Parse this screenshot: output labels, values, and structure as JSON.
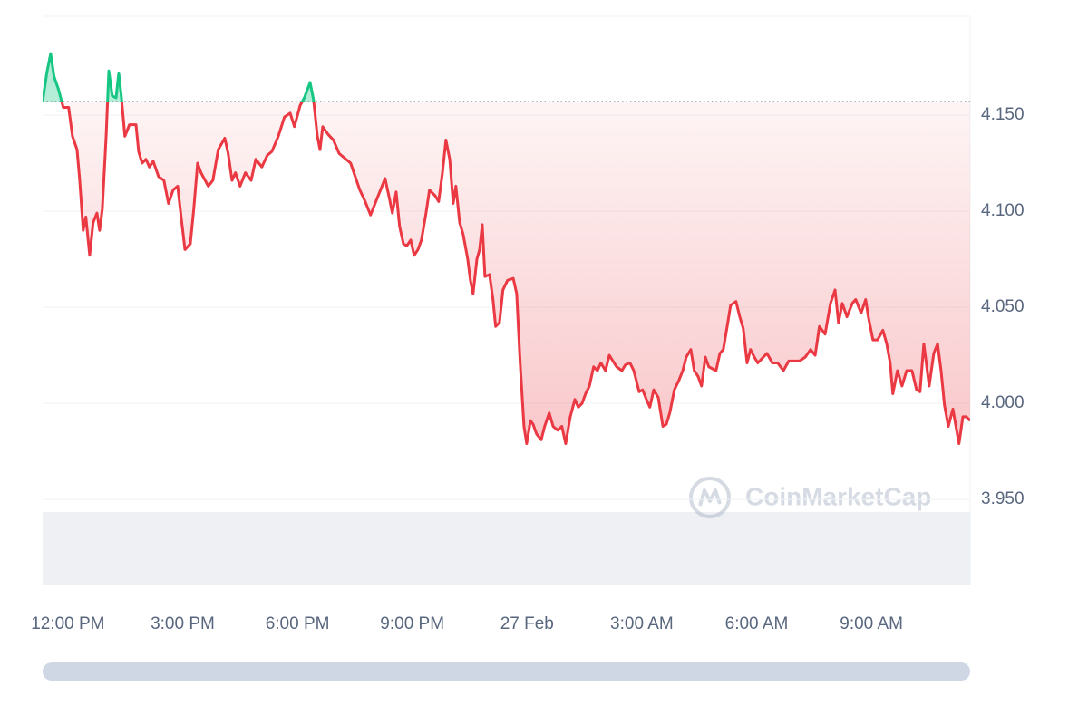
{
  "chart_data": {
    "type": "line",
    "watermark": "CoinMarketCap",
    "x": [
      -0.66,
      -0.55,
      -0.45,
      -0.36,
      -0.24,
      -0.12,
      0.02,
      0.12,
      0.24,
      0.31,
      0.4,
      0.47,
      0.57,
      0.66,
      0.76,
      0.83,
      0.9,
      1.0,
      1.07,
      1.16,
      1.26,
      1.33,
      1.4,
      1.49,
      1.61,
      1.78,
      1.85,
      1.94,
      2.04,
      2.13,
      2.23,
      2.37,
      2.51,
      2.63,
      2.75,
      2.87,
      2.96,
      3.06,
      3.2,
      3.29,
      3.39,
      3.48,
      3.67,
      3.79,
      3.93,
      4.1,
      4.19,
      4.29,
      4.38,
      4.5,
      4.64,
      4.79,
      4.91,
      5.07,
      5.21,
      5.33,
      5.5,
      5.66,
      5.81,
      5.92,
      6.07,
      6.18,
      6.33,
      6.42,
      6.52,
      6.59,
      6.66,
      6.8,
      6.94,
      7.09,
      7.39,
      7.51,
      7.63,
      7.77,
      7.91,
      8.03,
      8.29,
      8.41,
      8.48,
      8.58,
      8.67,
      8.77,
      8.86,
      8.96,
      9.05,
      9.15,
      9.24,
      9.36,
      9.45,
      9.6,
      9.69,
      9.79,
      9.88,
      9.98,
      10.07,
      10.14,
      10.24,
      10.33,
      10.45,
      10.52,
      10.59,
      10.69,
      10.76,
      10.83,
      10.9,
      11.02,
      11.11,
      11.18,
      11.28,
      11.37,
      11.49,
      11.64,
      11.73,
      11.82,
      11.92,
      11.99,
      12.09,
      12.16,
      12.25,
      12.37,
      12.46,
      12.58,
      12.68,
      12.8,
      12.91,
      13.01,
      13.13,
      13.25,
      13.34,
      13.44,
      13.53,
      13.63,
      13.74,
      13.84,
      13.93,
      14.05,
      14.15,
      14.34,
      14.48,
      14.57,
      14.69,
      14.79,
      14.93,
      15.02,
      15.12,
      15.21,
      15.31,
      15.43,
      15.55,
      15.64,
      15.73,
      15.85,
      15.97,
      16.07,
      16.16,
      16.28,
      16.37,
      16.47,
      16.56,
      16.66,
      16.75,
      16.94,
      17.04,
      17.13,
      17.23,
      17.32,
      17.46,
      17.56,
      17.65,
      17.75,
      17.84,
      17.94,
      18.03,
      18.27,
      18.41,
      18.55,
      18.7,
      18.84,
      19.12,
      19.27,
      19.41,
      19.53,
      19.64,
      19.79,
      19.93,
      20.05,
      20.14,
      20.24,
      20.36,
      20.5,
      20.59,
      20.73,
      20.85,
      20.92,
      21.04,
      21.16,
      21.3,
      21.4,
      21.49,
      21.56,
      21.68,
      21.8,
      21.92,
      22.06,
      22.18,
      22.27,
      22.37,
      22.51,
      22.63,
      22.73,
      22.82,
      22.91,
      23.01,
      23.13,
      23.2,
      23.29,
      23.39,
      23.48,
      23.58
    ],
    "values": [
      4.157,
      4.172,
      4.182,
      4.17,
      4.163,
      4.154,
      4.154,
      4.139,
      4.132,
      4.116,
      4.09,
      4.097,
      4.077,
      4.094,
      4.099,
      4.09,
      4.101,
      4.139,
      4.173,
      4.16,
      4.159,
      4.172,
      4.159,
      4.139,
      4.145,
      4.145,
      4.131,
      4.125,
      4.127,
      4.123,
      4.126,
      4.118,
      4.116,
      4.104,
      4.111,
      4.113,
      4.097,
      4.08,
      4.083,
      4.101,
      4.125,
      4.12,
      4.113,
      4.116,
      4.132,
      4.138,
      4.13,
      4.116,
      4.12,
      4.113,
      4.12,
      4.116,
      4.127,
      4.123,
      4.129,
      4.131,
      4.139,
      4.149,
      4.151,
      4.144,
      4.155,
      4.159,
      4.167,
      4.158,
      4.139,
      4.132,
      4.144,
      4.14,
      4.137,
      4.13,
      4.125,
      4.118,
      4.111,
      4.105,
      4.098,
      4.104,
      4.117,
      4.106,
      4.099,
      4.11,
      4.092,
      4.083,
      4.082,
      4.085,
      4.077,
      4.08,
      4.085,
      4.099,
      4.111,
      4.108,
      4.105,
      4.12,
      4.137,
      4.127,
      4.104,
      4.113,
      4.094,
      4.088,
      4.075,
      4.064,
      4.057,
      4.075,
      4.08,
      4.093,
      4.066,
      4.067,
      4.054,
      4.04,
      4.042,
      4.059,
      4.064,
      4.065,
      4.057,
      4.021,
      3.988,
      3.979,
      3.991,
      3.989,
      3.984,
      3.981,
      3.988,
      3.995,
      3.988,
      3.986,
      3.988,
      3.979,
      3.993,
      4.002,
      3.998,
      4.0,
      4.005,
      4.009,
      4.019,
      4.017,
      4.021,
      4.017,
      4.025,
      4.019,
      4.017,
      4.02,
      4.021,
      4.017,
      4.006,
      4.007,
      4.002,
      3.998,
      4.007,
      4.003,
      3.988,
      3.989,
      3.995,
      4.007,
      4.012,
      4.017,
      4.024,
      4.028,
      4.017,
      4.014,
      4.009,
      4.024,
      4.019,
      4.017,
      4.026,
      4.028,
      4.04,
      4.051,
      4.053,
      4.045,
      4.039,
      4.021,
      4.028,
      4.024,
      4.021,
      4.026,
      4.021,
      4.021,
      4.017,
      4.022,
      4.022,
      4.024,
      4.028,
      4.025,
      4.04,
      4.036,
      4.052,
      4.059,
      4.042,
      4.052,
      4.045,
      4.052,
      4.054,
      4.047,
      4.054,
      4.045,
      4.033,
      4.033,
      4.038,
      4.031,
      4.021,
      4.005,
      4.017,
      4.009,
      4.017,
      4.017,
      4.007,
      4.006,
      4.031,
      4.009,
      4.026,
      4.031,
      4.017,
      3.999,
      3.988,
      3.997,
      3.989,
      3.979,
      3.993,
      3.993,
      3.991
    ],
    "baseline": 4.157,
    "up_color": "#16c784",
    "down_color": "#ea3943",
    "xlim": [
      -0.66,
      23.58
    ],
    "xticks": [
      {
        "value": 0,
        "label": "12:00 PM"
      },
      {
        "value": 3,
        "label": "3:00 PM"
      },
      {
        "value": 6,
        "label": "6:00 PM"
      },
      {
        "value": 9,
        "label": "9:00 PM"
      },
      {
        "value": 12,
        "label": "27 Feb"
      },
      {
        "value": 15,
        "label": "3:00 AM"
      },
      {
        "value": 18,
        "label": "6:00 AM"
      },
      {
        "value": 21,
        "label": "9:00 AM"
      }
    ],
    "ylim": [
      3.9057,
      4.2014
    ],
    "yticks": [
      {
        "value": 3.95,
        "label": "3.950"
      },
      {
        "value": 4.0,
        "label": "4.000"
      },
      {
        "value": 4.05,
        "label": "4.050"
      },
      {
        "value": 4.1,
        "label": "4.100"
      },
      {
        "value": 4.15,
        "label": "4.150"
      }
    ],
    "grid": true
  }
}
